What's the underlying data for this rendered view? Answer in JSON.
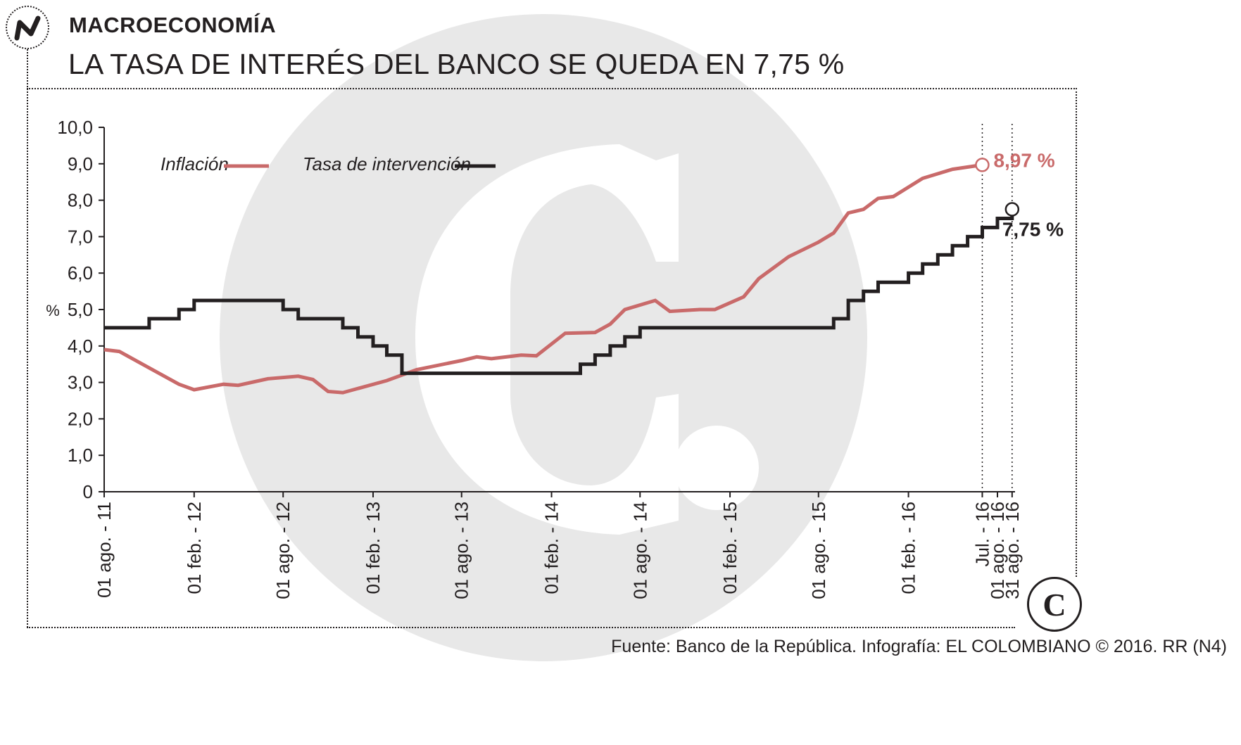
{
  "header": {
    "section": "MACROECONOMÍA",
    "title": "LA TASA DE INTERÉS DEL BANCO SE QUEDA EN 7,75 %"
  },
  "source": "Fuente: Banco de la República. Infografía: EL COLOMBIANO © 2016. RR (N4)",
  "brand_letter": "C",
  "colors": {
    "inflation": "#c96a6a",
    "rate": "#231f20",
    "watermark": "#e8e8e8",
    "text": "#231f20"
  },
  "chart_data": {
    "type": "line",
    "ylabel": "%",
    "ylim": [
      0,
      10
    ],
    "y_ticks": [
      "0",
      "1,0",
      "2,0",
      "3,0",
      "4,0",
      "5,0",
      "6,0",
      "7,0",
      "8,0",
      "9,0",
      "10,0"
    ],
    "x_ticks": [
      {
        "label": "01 ago. - 11",
        "date": "2011-08-01"
      },
      {
        "label": "01 feb. - 12",
        "date": "2012-02-01"
      },
      {
        "label": "01 ago. - 12",
        "date": "2012-08-01"
      },
      {
        "label": "01 feb. - 13",
        "date": "2013-02-01"
      },
      {
        "label": "01 ago. - 13",
        "date": "2013-08-01"
      },
      {
        "label": "01 feb. - 14",
        "date": "2014-02-01"
      },
      {
        "label": "01 ago. - 14",
        "date": "2014-08-01"
      },
      {
        "label": "01 feb. - 15",
        "date": "2015-02-01"
      },
      {
        "label": "01 ago. - 15",
        "date": "2015-08-01"
      },
      {
        "label": "01 feb. - 16",
        "date": "2016-02-01"
      },
      {
        "label": "Jul. - 16",
        "date": "2016-07-01"
      },
      {
        "label": "01 ago. - 16",
        "date": "2016-08-01"
      },
      {
        "label": "31 ago. - 16",
        "date": "2016-08-31"
      }
    ],
    "xlim": [
      "2011-08-01",
      "2016-09-06"
    ],
    "grid": false,
    "legend": "top-left",
    "series": [
      {
        "name": "Inflación",
        "color": "#c96a6a",
        "end_label": "8,97 %",
        "points": [
          [
            "2011-08-01",
            3.9
          ],
          [
            "2011-09-01",
            3.85
          ],
          [
            "2011-11-01",
            3.4
          ],
          [
            "2012-01-01",
            2.95
          ],
          [
            "2012-02-01",
            2.8
          ],
          [
            "2012-04-01",
            2.95
          ],
          [
            "2012-05-01",
            2.92
          ],
          [
            "2012-07-01",
            3.1
          ],
          [
            "2012-09-01",
            3.17
          ],
          [
            "2012-10-01",
            3.08
          ],
          [
            "2012-11-01",
            2.75
          ],
          [
            "2012-12-01",
            2.72
          ],
          [
            "2013-03-01",
            3.05
          ],
          [
            "2013-05-01",
            3.35
          ],
          [
            "2013-08-01",
            3.6
          ],
          [
            "2013-09-01",
            3.7
          ],
          [
            "2013-10-01",
            3.65
          ],
          [
            "2013-12-01",
            3.75
          ],
          [
            "2014-01-01",
            3.73
          ],
          [
            "2014-03-01",
            4.35
          ],
          [
            "2014-05-01",
            4.37
          ],
          [
            "2014-06-01",
            4.6
          ],
          [
            "2014-07-01",
            5.0
          ],
          [
            "2014-09-01",
            5.25
          ],
          [
            "2014-10-01",
            4.95
          ],
          [
            "2014-12-01",
            5.0
          ],
          [
            "2015-01-01",
            5.0
          ],
          [
            "2015-03-01",
            5.35
          ],
          [
            "2015-04-01",
            5.85
          ],
          [
            "2015-06-01",
            6.45
          ],
          [
            "2015-08-01",
            6.85
          ],
          [
            "2015-09-01",
            7.1
          ],
          [
            "2015-10-01",
            7.65
          ],
          [
            "2015-11-01",
            7.75
          ],
          [
            "2015-12-01",
            8.05
          ],
          [
            "2016-01-01",
            8.1
          ],
          [
            "2016-03-01",
            8.6
          ],
          [
            "2016-05-01",
            8.85
          ],
          [
            "2016-07-01",
            8.97
          ]
        ]
      },
      {
        "name": "Tasa de intervención",
        "color": "#231f20",
        "end_label": "7,75 %",
        "step": true,
        "points": [
          [
            "2011-08-01",
            4.5
          ],
          [
            "2011-11-01",
            4.75
          ],
          [
            "2012-01-01",
            5.0
          ],
          [
            "2012-02-01",
            5.25
          ],
          [
            "2012-08-01",
            5.0
          ],
          [
            "2012-09-01",
            4.75
          ],
          [
            "2012-12-01",
            4.5
          ],
          [
            "2013-01-01",
            4.25
          ],
          [
            "2013-02-01",
            4.0
          ],
          [
            "2013-03-01",
            3.75
          ],
          [
            "2013-04-01",
            3.25
          ],
          [
            "2014-04-01",
            3.5
          ],
          [
            "2014-05-01",
            3.75
          ],
          [
            "2014-06-01",
            4.0
          ],
          [
            "2014-07-01",
            4.25
          ],
          [
            "2014-08-01",
            4.5
          ],
          [
            "2015-09-01",
            4.75
          ],
          [
            "2015-10-01",
            5.25
          ],
          [
            "2015-11-01",
            5.5
          ],
          [
            "2015-12-01",
            5.75
          ],
          [
            "2016-01-01",
            5.75
          ],
          [
            "2016-02-01",
            6.0
          ],
          [
            "2016-03-01",
            6.25
          ],
          [
            "2016-04-01",
            6.5
          ],
          [
            "2016-05-01",
            6.75
          ],
          [
            "2016-06-01",
            7.0
          ],
          [
            "2016-07-01",
            7.25
          ],
          [
            "2016-08-01",
            7.5
          ],
          [
            "2016-08-31",
            7.75
          ]
        ]
      }
    ],
    "markers": [
      {
        "series": "Inflación",
        "date": "2016-07-01",
        "value": 8.97
      },
      {
        "series": "Tasa de intervención",
        "date": "2016-08-31",
        "value": 7.75
      }
    ]
  }
}
